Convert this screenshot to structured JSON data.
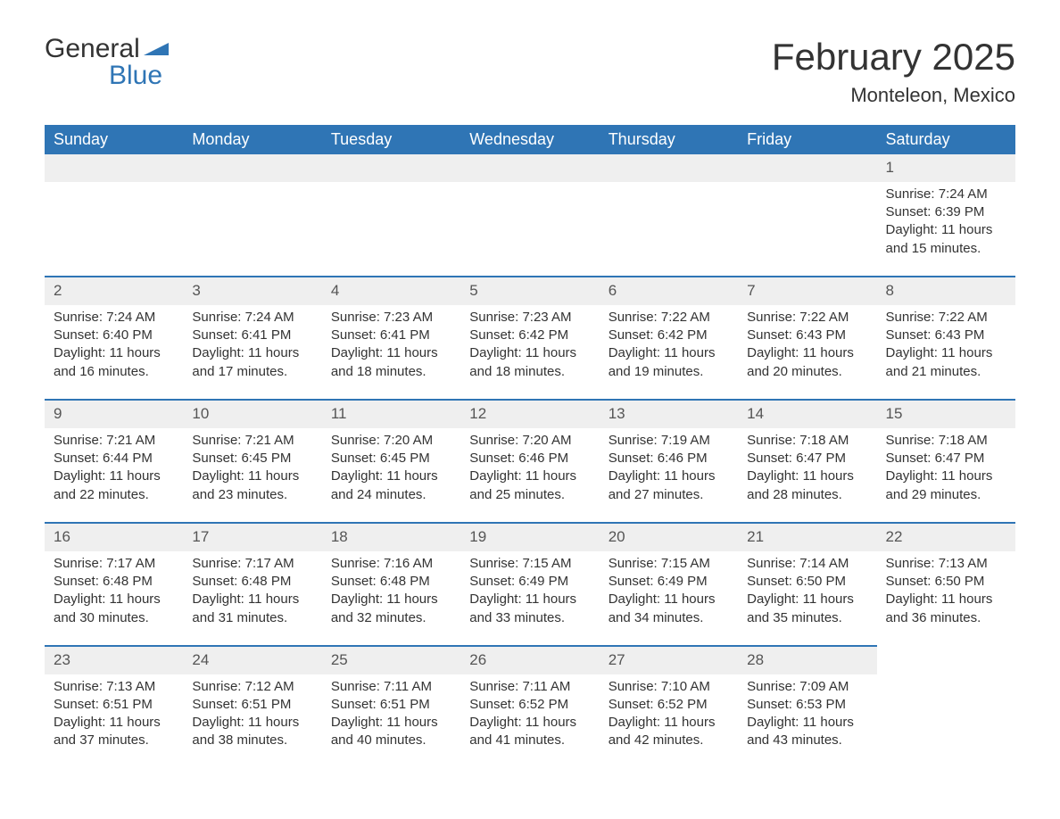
{
  "brand": {
    "name_top": "General",
    "name_bottom": "Blue",
    "flag_color": "#2f75b5",
    "text_color": "#333333"
  },
  "title": "February 2025",
  "location": "Monteleon, Mexico",
  "header_bg": "#2f75b5",
  "header_text_color": "#ffffff",
  "row_stripe_bg": "#efefef",
  "row_border_color": "#2f75b5",
  "weekdays": [
    "Sunday",
    "Monday",
    "Tuesday",
    "Wednesday",
    "Thursday",
    "Friday",
    "Saturday"
  ],
  "weeks": [
    [
      null,
      null,
      null,
      null,
      null,
      null,
      {
        "n": "1",
        "sunrise": "Sunrise: 7:24 AM",
        "sunset": "Sunset: 6:39 PM",
        "daylight": "Daylight: 11 hours and 15 minutes."
      }
    ],
    [
      {
        "n": "2",
        "sunrise": "Sunrise: 7:24 AM",
        "sunset": "Sunset: 6:40 PM",
        "daylight": "Daylight: 11 hours and 16 minutes."
      },
      {
        "n": "3",
        "sunrise": "Sunrise: 7:24 AM",
        "sunset": "Sunset: 6:41 PM",
        "daylight": "Daylight: 11 hours and 17 minutes."
      },
      {
        "n": "4",
        "sunrise": "Sunrise: 7:23 AM",
        "sunset": "Sunset: 6:41 PM",
        "daylight": "Daylight: 11 hours and 18 minutes."
      },
      {
        "n": "5",
        "sunrise": "Sunrise: 7:23 AM",
        "sunset": "Sunset: 6:42 PM",
        "daylight": "Daylight: 11 hours and 18 minutes."
      },
      {
        "n": "6",
        "sunrise": "Sunrise: 7:22 AM",
        "sunset": "Sunset: 6:42 PM",
        "daylight": "Daylight: 11 hours and 19 minutes."
      },
      {
        "n": "7",
        "sunrise": "Sunrise: 7:22 AM",
        "sunset": "Sunset: 6:43 PM",
        "daylight": "Daylight: 11 hours and 20 minutes."
      },
      {
        "n": "8",
        "sunrise": "Sunrise: 7:22 AM",
        "sunset": "Sunset: 6:43 PM",
        "daylight": "Daylight: 11 hours and 21 minutes."
      }
    ],
    [
      {
        "n": "9",
        "sunrise": "Sunrise: 7:21 AM",
        "sunset": "Sunset: 6:44 PM",
        "daylight": "Daylight: 11 hours and 22 minutes."
      },
      {
        "n": "10",
        "sunrise": "Sunrise: 7:21 AM",
        "sunset": "Sunset: 6:45 PM",
        "daylight": "Daylight: 11 hours and 23 minutes."
      },
      {
        "n": "11",
        "sunrise": "Sunrise: 7:20 AM",
        "sunset": "Sunset: 6:45 PM",
        "daylight": "Daylight: 11 hours and 24 minutes."
      },
      {
        "n": "12",
        "sunrise": "Sunrise: 7:20 AM",
        "sunset": "Sunset: 6:46 PM",
        "daylight": "Daylight: 11 hours and 25 minutes."
      },
      {
        "n": "13",
        "sunrise": "Sunrise: 7:19 AM",
        "sunset": "Sunset: 6:46 PM",
        "daylight": "Daylight: 11 hours and 27 minutes."
      },
      {
        "n": "14",
        "sunrise": "Sunrise: 7:18 AM",
        "sunset": "Sunset: 6:47 PM",
        "daylight": "Daylight: 11 hours and 28 minutes."
      },
      {
        "n": "15",
        "sunrise": "Sunrise: 7:18 AM",
        "sunset": "Sunset: 6:47 PM",
        "daylight": "Daylight: 11 hours and 29 minutes."
      }
    ],
    [
      {
        "n": "16",
        "sunrise": "Sunrise: 7:17 AM",
        "sunset": "Sunset: 6:48 PM",
        "daylight": "Daylight: 11 hours and 30 minutes."
      },
      {
        "n": "17",
        "sunrise": "Sunrise: 7:17 AM",
        "sunset": "Sunset: 6:48 PM",
        "daylight": "Daylight: 11 hours and 31 minutes."
      },
      {
        "n": "18",
        "sunrise": "Sunrise: 7:16 AM",
        "sunset": "Sunset: 6:48 PM",
        "daylight": "Daylight: 11 hours and 32 minutes."
      },
      {
        "n": "19",
        "sunrise": "Sunrise: 7:15 AM",
        "sunset": "Sunset: 6:49 PM",
        "daylight": "Daylight: 11 hours and 33 minutes."
      },
      {
        "n": "20",
        "sunrise": "Sunrise: 7:15 AM",
        "sunset": "Sunset: 6:49 PM",
        "daylight": "Daylight: 11 hours and 34 minutes."
      },
      {
        "n": "21",
        "sunrise": "Sunrise: 7:14 AM",
        "sunset": "Sunset: 6:50 PM",
        "daylight": "Daylight: 11 hours and 35 minutes."
      },
      {
        "n": "22",
        "sunrise": "Sunrise: 7:13 AM",
        "sunset": "Sunset: 6:50 PM",
        "daylight": "Daylight: 11 hours and 36 minutes."
      }
    ],
    [
      {
        "n": "23",
        "sunrise": "Sunrise: 7:13 AM",
        "sunset": "Sunset: 6:51 PM",
        "daylight": "Daylight: 11 hours and 37 minutes."
      },
      {
        "n": "24",
        "sunrise": "Sunrise: 7:12 AM",
        "sunset": "Sunset: 6:51 PM",
        "daylight": "Daylight: 11 hours and 38 minutes."
      },
      {
        "n": "25",
        "sunrise": "Sunrise: 7:11 AM",
        "sunset": "Sunset: 6:51 PM",
        "daylight": "Daylight: 11 hours and 40 minutes."
      },
      {
        "n": "26",
        "sunrise": "Sunrise: 7:11 AM",
        "sunset": "Sunset: 6:52 PM",
        "daylight": "Daylight: 11 hours and 41 minutes."
      },
      {
        "n": "27",
        "sunrise": "Sunrise: 7:10 AM",
        "sunset": "Sunset: 6:52 PM",
        "daylight": "Daylight: 11 hours and 42 minutes."
      },
      {
        "n": "28",
        "sunrise": "Sunrise: 7:09 AM",
        "sunset": "Sunset: 6:53 PM",
        "daylight": "Daylight: 11 hours and 43 minutes."
      },
      null
    ]
  ]
}
